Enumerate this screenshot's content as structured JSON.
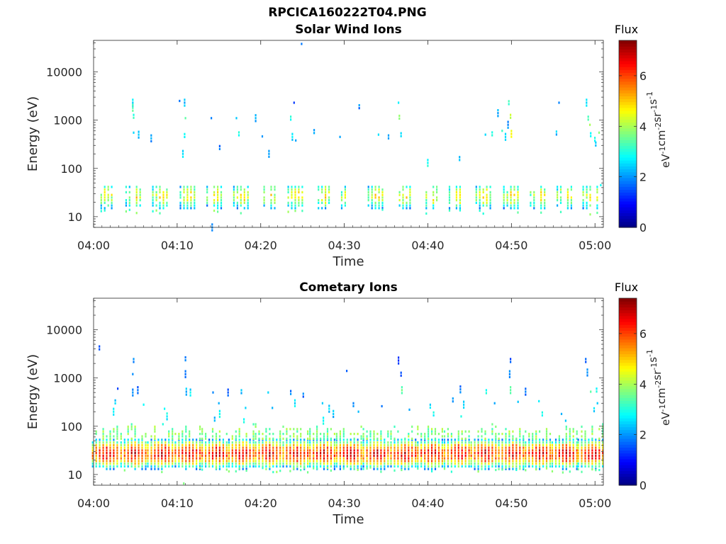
{
  "figure": {
    "filename": "RPCICA160222T04.PNG"
  },
  "chart_data": [
    {
      "type": "heatmap",
      "title": "Solar Wind Ions",
      "xlabel": "Time",
      "ylabel": "Energy (eV)",
      "yscale": "log",
      "ylim": [
        6,
        45000
      ],
      "xlim": [
        "04:00",
        "05:01"
      ],
      "xticks": [
        "04:00",
        "04:10",
        "04:20",
        "04:30",
        "04:40",
        "04:50",
        "05:00"
      ],
      "yticks": [
        "10",
        "100",
        "1000",
        "10000"
      ],
      "colorbar": {
        "title": "Flux",
        "unit_label": "eV-1cm-2sr-1s-1",
        "range": [
          0,
          7.4
        ],
        "ticks": [
          "0",
          "2",
          "4",
          "6"
        ],
        "colormap": "jet"
      },
      "bursts_minutes": [
        1.5,
        4.9,
        8.1,
        11.4,
        14.6,
        17.8,
        21.0,
        24.3,
        27.5,
        30.7,
        33.9,
        37.2,
        40.4,
        43.6,
        46.8,
        50.1,
        53.3,
        56.5,
        59.6
      ],
      "core_energy_eV": 27,
      "core_flux": 4.6,
      "sparse_points": [
        {
          "t": 4.6,
          "e": 2300,
          "f": 2.6
        },
        {
          "t": 4.6,
          "e": 1800,
          "f": 3.4
        },
        {
          "t": 4.7,
          "e": 1200,
          "f": 3.0
        },
        {
          "t": 4.7,
          "e": 550,
          "f": 2.5
        },
        {
          "t": 5.3,
          "e": 500,
          "f": 2.2
        },
        {
          "t": 6.8,
          "e": 420,
          "f": 2.0
        },
        {
          "t": 10.2,
          "e": 2500,
          "f": 1.5
        },
        {
          "t": 10.8,
          "e": 2300,
          "f": 2.3
        },
        {
          "t": 10.9,
          "e": 1100,
          "f": 3.6
        },
        {
          "t": 10.8,
          "e": 480,
          "f": 2.8
        },
        {
          "t": 10.6,
          "e": 200,
          "f": 2.4
        },
        {
          "t": 14.0,
          "e": 1100,
          "f": 2.0
        },
        {
          "t": 15.0,
          "e": 270,
          "f": 1.7
        },
        {
          "t": 17.0,
          "e": 1100,
          "f": 2.4
        },
        {
          "t": 17.3,
          "e": 520,
          "f": 3.0
        },
        {
          "t": 19.3,
          "e": 1100,
          "f": 2.0
        },
        {
          "t": 20.1,
          "e": 460,
          "f": 2.2
        },
        {
          "t": 20.9,
          "e": 200,
          "f": 2.0
        },
        {
          "t": 23.5,
          "e": 1100,
          "f": 2.8
        },
        {
          "t": 23.7,
          "e": 450,
          "f": 2.6
        },
        {
          "t": 23.9,
          "e": 2300,
          "f": 1.6
        },
        {
          "t": 24.1,
          "e": 380,
          "f": 2.4
        },
        {
          "t": 24.8,
          "e": 38000,
          "f": 1.5
        },
        {
          "t": 26.3,
          "e": 580,
          "f": 2.1
        },
        {
          "t": 29.4,
          "e": 450,
          "f": 2.0
        },
        {
          "t": 31.7,
          "e": 1900,
          "f": 1.9
        },
        {
          "t": 34.0,
          "e": 500,
          "f": 2.3
        },
        {
          "t": 35.2,
          "e": 450,
          "f": 2.0
        },
        {
          "t": 36.4,
          "e": 2300,
          "f": 2.5
        },
        {
          "t": 36.5,
          "e": 1150,
          "f": 3.8
        },
        {
          "t": 36.7,
          "e": 500,
          "f": 2.6
        },
        {
          "t": 39.9,
          "e": 130,
          "f": 2.8
        },
        {
          "t": 43.7,
          "e": 160,
          "f": 2.2
        },
        {
          "t": 46.8,
          "e": 500,
          "f": 2.7
        },
        {
          "t": 47.6,
          "e": 520,
          "f": 3.1
        },
        {
          "t": 48.3,
          "e": 1400,
          "f": 2.2
        },
        {
          "t": 48.8,
          "e": 600,
          "f": 2.9
        },
        {
          "t": 49.6,
          "e": 2300,
          "f": 3.4
        },
        {
          "t": 49.8,
          "e": 1200,
          "f": 4.2
        },
        {
          "t": 49.9,
          "e": 520,
          "f": 4.4
        },
        {
          "t": 49.5,
          "e": 800,
          "f": 2.0
        },
        {
          "t": 49.2,
          "e": 450,
          "f": 2.5
        },
        {
          "t": 55.3,
          "e": 540,
          "f": 2.3
        },
        {
          "t": 55.6,
          "e": 2300,
          "f": 1.8
        },
        {
          "t": 58.9,
          "e": 2300,
          "f": 2.4
        },
        {
          "t": 59.1,
          "e": 1100,
          "f": 3.2
        },
        {
          "t": 59.3,
          "e": 800,
          "f": 4.0
        },
        {
          "t": 59.4,
          "e": 500,
          "f": 2.6
        },
        {
          "t": 59.9,
          "e": 400,
          "f": 2.8
        },
        {
          "t": 60.0,
          "e": 320,
          "f": 2.3
        },
        {
          "t": 60.4,
          "e": 550,
          "f": 3.5
        },
        {
          "t": 14.1,
          "e": 6,
          "f": 1.8
        },
        {
          "t": 60.6,
          "e": 45,
          "f": 3.0
        }
      ]
    },
    {
      "type": "heatmap",
      "title": "Cometary Ions",
      "xlabel": "Time",
      "ylabel": "Energy (eV)",
      "yscale": "log",
      "ylim": [
        6,
        45000
      ],
      "xlim": [
        "04:00",
        "05:01"
      ],
      "xticks": [
        "04:00",
        "04:10",
        "04:20",
        "04:30",
        "04:40",
        "04:50",
        "05:00"
      ],
      "yticks": [
        "10",
        "100",
        "1000",
        "10000"
      ],
      "colorbar": {
        "title": "Flux",
        "unit_label": "eV-1cm-2sr-1s-1",
        "range": [
          0,
          7.4
        ],
        "ticks": [
          "0",
          "2",
          "4",
          "6"
        ],
        "colormap": "jet"
      },
      "bursts_minutes": [
        1.5,
        4.9,
        8.1,
        11.4,
        14.6,
        17.8,
        21.0,
        24.3,
        27.5,
        30.7,
        33.9,
        37.2,
        40.4,
        43.6,
        46.8,
        50.1,
        53.3,
        56.5,
        59.6
      ],
      "core_energy_eV": 27,
      "core_flux": 6.4,
      "sparse_points": [
        {
          "t": 0.6,
          "e": 4200,
          "f": 1.5
        },
        {
          "t": 2.8,
          "e": 600,
          "f": 1.6
        },
        {
          "t": 2.5,
          "e": 320,
          "f": 2.4
        },
        {
          "t": 2.3,
          "e": 200,
          "f": 2.6
        },
        {
          "t": 4.7,
          "e": 2300,
          "f": 1.8
        },
        {
          "t": 4.6,
          "e": 1200,
          "f": 1.7
        },
        {
          "t": 4.6,
          "e": 500,
          "f": 1.9
        },
        {
          "t": 5.2,
          "e": 560,
          "f": 1.6
        },
        {
          "t": 5.9,
          "e": 280,
          "f": 2.5
        },
        {
          "t": 8.4,
          "e": 230,
          "f": 2.6
        },
        {
          "t": 8.7,
          "e": 160,
          "f": 2.8
        },
        {
          "t": 8.2,
          "e": 110,
          "f": 3.0
        },
        {
          "t": 10.9,
          "e": 2500,
          "f": 1.7
        },
        {
          "t": 10.9,
          "e": 1200,
          "f": 1.9
        },
        {
          "t": 11.0,
          "e": 520,
          "f": 2.3
        },
        {
          "t": 11.5,
          "e": 500,
          "f": 2.6
        },
        {
          "t": 14.2,
          "e": 500,
          "f": 1.6
        },
        {
          "t": 14.9,
          "e": 300,
          "f": 2.5
        },
        {
          "t": 15.0,
          "e": 180,
          "f": 2.9
        },
        {
          "t": 14.4,
          "e": 140,
          "f": 2.4
        },
        {
          "t": 16.0,
          "e": 500,
          "f": 1.7
        },
        {
          "t": 17.6,
          "e": 520,
          "f": 2.2
        },
        {
          "t": 18.1,
          "e": 240,
          "f": 2.4
        },
        {
          "t": 17.9,
          "e": 130,
          "f": 2.8
        },
        {
          "t": 20.8,
          "e": 500,
          "f": 2.4
        },
        {
          "t": 21.3,
          "e": 240,
          "f": 2.1
        },
        {
          "t": 23.5,
          "e": 500,
          "f": 1.8
        },
        {
          "t": 24.0,
          "e": 300,
          "f": 2.6
        },
        {
          "t": 25.0,
          "e": 440,
          "f": 1.7
        },
        {
          "t": 27.3,
          "e": 300,
          "f": 2.2
        },
        {
          "t": 28.1,
          "e": 230,
          "f": 2.5
        },
        {
          "t": 28.6,
          "e": 180,
          "f": 2.2
        },
        {
          "t": 27.4,
          "e": 130,
          "f": 2.7
        },
        {
          "t": 30.2,
          "e": 1400,
          "f": 1.6
        },
        {
          "t": 31.0,
          "e": 280,
          "f": 2.0
        },
        {
          "t": 31.6,
          "e": 200,
          "f": 2.5
        },
        {
          "t": 34.4,
          "e": 260,
          "f": 2.0
        },
        {
          "t": 36.4,
          "e": 2300,
          "f": 1.5
        },
        {
          "t": 36.7,
          "e": 1200,
          "f": 1.7
        },
        {
          "t": 36.8,
          "e": 560,
          "f": 3.4
        },
        {
          "t": 37.7,
          "e": 220,
          "f": 2.1
        },
        {
          "t": 40.2,
          "e": 260,
          "f": 2.4
        },
        {
          "t": 40.6,
          "e": 180,
          "f": 2.8
        },
        {
          "t": 42.9,
          "e": 350,
          "f": 2.2
        },
        {
          "t": 43.8,
          "e": 580,
          "f": 1.8
        },
        {
          "t": 44.2,
          "e": 280,
          "f": 2.6
        },
        {
          "t": 43.9,
          "e": 160,
          "f": 2.9
        },
        {
          "t": 46.9,
          "e": 520,
          "f": 2.8
        },
        {
          "t": 47.9,
          "e": 300,
          "f": 2.2
        },
        {
          "t": 49.8,
          "e": 2300,
          "f": 1.6
        },
        {
          "t": 49.7,
          "e": 1200,
          "f": 1.8
        },
        {
          "t": 49.8,
          "e": 560,
          "f": 3.6
        },
        {
          "t": 50.7,
          "e": 320,
          "f": 2.5
        },
        {
          "t": 51.6,
          "e": 520,
          "f": 1.7
        },
        {
          "t": 53.2,
          "e": 330,
          "f": 2.5
        },
        {
          "t": 53.6,
          "e": 180,
          "f": 2.9
        },
        {
          "t": 55.9,
          "e": 180,
          "f": 2.2
        },
        {
          "t": 56.4,
          "e": 130,
          "f": 2.6
        },
        {
          "t": 58.8,
          "e": 2300,
          "f": 1.7
        },
        {
          "t": 59.0,
          "e": 1300,
          "f": 1.8
        },
        {
          "t": 59.4,
          "e": 520,
          "f": 3.2
        },
        {
          "t": 60.1,
          "e": 560,
          "f": 3.0
        },
        {
          "t": 60.2,
          "e": 300,
          "f": 2.3
        },
        {
          "t": 59.8,
          "e": 220,
          "f": 2.4
        },
        {
          "t": 10.7,
          "e": 6.5,
          "f": 3.8
        }
      ]
    }
  ]
}
